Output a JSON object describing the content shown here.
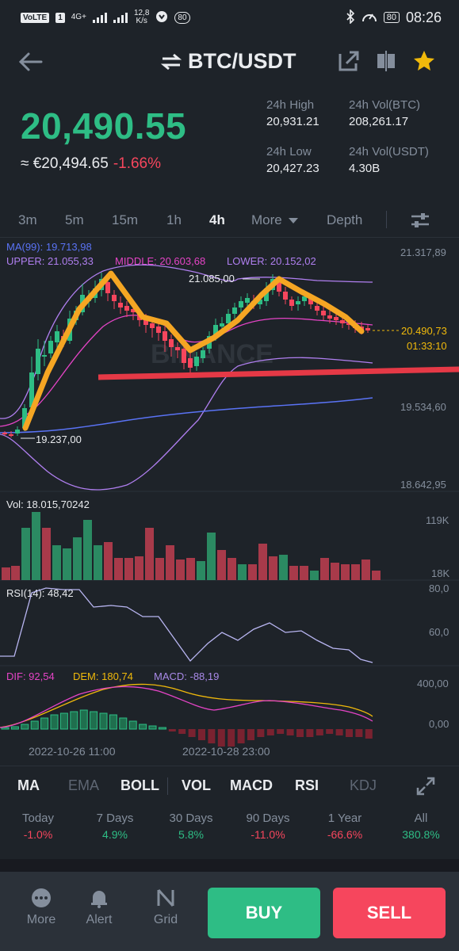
{
  "status_bar": {
    "network_badge": "VoLTE",
    "sim": "1",
    "net_type": "4G+",
    "speed_value": "12,8",
    "speed_unit": "K/s",
    "notif_count": "80",
    "battery": "80",
    "time": "08:26"
  },
  "header": {
    "pair": "BTC/USDT"
  },
  "ticker": {
    "last_price": "20,490.55",
    "fiat_price": "≈ €20,494.65",
    "change_pct": "-1.66%",
    "high_label": "24h High",
    "high_value": "20,931.21",
    "low_label": "24h Low",
    "low_value": "20,427.23",
    "vol_btc_label": "24h Vol(BTC)",
    "vol_btc_value": "208,261.17",
    "vol_usdt_label": "24h Vol(USDT)",
    "vol_usdt_value": "4.30B"
  },
  "timeframes": {
    "tabs": [
      "3m",
      "5m",
      "15m",
      "1h",
      "4h",
      "More",
      "Depth"
    ],
    "active": "4h"
  },
  "chart": {
    "watermark": "BINANCE",
    "ma_label": "MA(99): 19.713,98",
    "boll_upper": "UPPER: 21.055,33",
    "boll_middle": "MIDDLE: 20.603,68",
    "boll_lower": "LOWER: 20.152,02",
    "axis_top": "21.317,89",
    "axis_mid": "19.534,60",
    "axis_bottom": "18.642,95",
    "high_marker": "21.085,00",
    "low_marker": "19.237,00",
    "last_price_tag": "20.490,73",
    "countdown": "01:33:10",
    "vol_label": "Vol: 18.015,70242",
    "vol_axis_top": "119K",
    "vol_axis_bottom": "18K",
    "rsi_label": "RSI(14): 48,42",
    "rsi_axis_top": "80,0",
    "rsi_axis_mid": "60,0",
    "dif_label": "DIF: 92,54",
    "dem_label": "DEM: 180,74",
    "macd_label": "MACD: -88,19",
    "macd_axis_top": "400,00",
    "macd_axis_mid": "0,00",
    "date_1": "2022-10-26 11:00",
    "date_2": "2022-10-28 23:00",
    "colors": {
      "up": "#2ebd85",
      "down": "#f6465d",
      "ma99": "#5a73f5",
      "boll_upper": "#b07ff0",
      "boll_middle": "#e544c6",
      "annotation_orange": "#f5a623",
      "support_red": "#e53946",
      "dif": "#e544c6",
      "dem": "#f0b90b",
      "macd": "#a98ae8",
      "rsi": "#b9b6f2"
    }
  },
  "indicators": {
    "items": [
      {
        "label": "MA",
        "on": true
      },
      {
        "label": "EMA",
        "on": false
      },
      {
        "label": "BOLL",
        "on": true
      },
      {
        "label": "VOL",
        "on": true
      },
      {
        "label": "MACD",
        "on": true
      },
      {
        "label": "RSI",
        "on": true
      },
      {
        "label": "KDJ",
        "on": false
      }
    ]
  },
  "performance": [
    {
      "label": "Today",
      "value": "-1.0%",
      "dir": "neg"
    },
    {
      "label": "7 Days",
      "value": "4.9%",
      "dir": "pos"
    },
    {
      "label": "30 Days",
      "value": "5.8%",
      "dir": "pos"
    },
    {
      "label": "90 Days",
      "value": "-11.0%",
      "dir": "neg"
    },
    {
      "label": "1 Year",
      "value": "-66.6%",
      "dir": "neg"
    },
    {
      "label": "All",
      "value": "380.8%",
      "dir": "pos"
    }
  ],
  "bottom_nav": {
    "more": "More",
    "alert": "Alert",
    "grid": "Grid",
    "buy": "BUY",
    "sell": "SELL"
  }
}
